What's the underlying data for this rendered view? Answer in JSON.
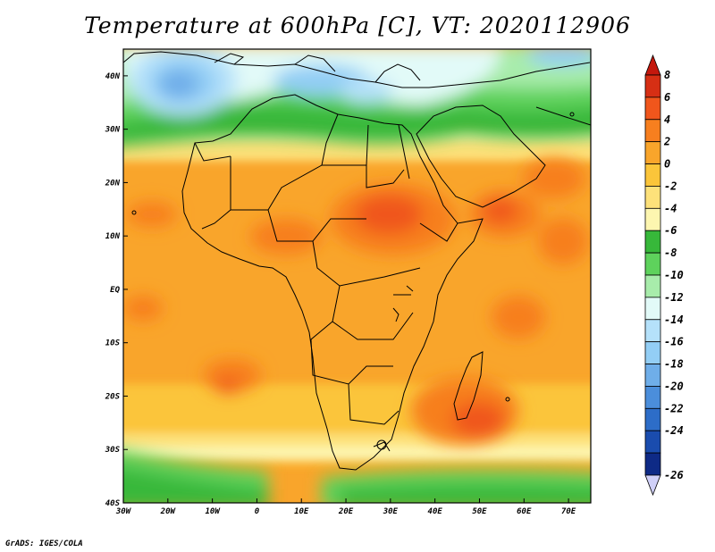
{
  "title": "Temperature at 600hPa [C], VT: 2020112906",
  "credit": "GrADS: IGES/COLA",
  "map": {
    "lon_range": [
      -30,
      75
    ],
    "lat_range": [
      -40,
      45
    ],
    "lat_ticks": [
      {
        "value": 40,
        "label": "40N"
      },
      {
        "value": 30,
        "label": "30N"
      },
      {
        "value": 20,
        "label": "20N"
      },
      {
        "value": 10,
        "label": "10N"
      },
      {
        "value": 0,
        "label": "EQ"
      },
      {
        "value": -10,
        "label": "10S"
      },
      {
        "value": -20,
        "label": "20S"
      },
      {
        "value": -30,
        "label": "30S"
      },
      {
        "value": -40,
        "label": "40S"
      }
    ],
    "lon_ticks": [
      {
        "value": -30,
        "label": "30W"
      },
      {
        "value": -20,
        "label": "20W"
      },
      {
        "value": -10,
        "label": "10W"
      },
      {
        "value": 0,
        "label": "0"
      },
      {
        "value": 10,
        "label": "10E"
      },
      {
        "value": 20,
        "label": "20E"
      },
      {
        "value": 30,
        "label": "30E"
      },
      {
        "value": 40,
        "label": "40E"
      },
      {
        "value": 50,
        "label": "50E"
      },
      {
        "value": 60,
        "label": "60E"
      },
      {
        "value": 70,
        "label": "70E"
      }
    ]
  },
  "colorbar": {
    "levels": [
      {
        "label": "8",
        "color": "#d62f14"
      },
      {
        "label": "6",
        "color": "#f0561c"
      },
      {
        "label": "4",
        "color": "#f77f1f"
      },
      {
        "label": "2",
        "color": "#f9a52b"
      },
      {
        "label": "0",
        "color": "#fbc53a"
      },
      {
        "label": "-2",
        "color": "#fde17a"
      },
      {
        "label": "-4",
        "color": "#fdf6b0"
      },
      {
        "label": "-6",
        "color": "#37b83a"
      },
      {
        "label": "-8",
        "color": "#5ed25c"
      },
      {
        "label": "-10",
        "color": "#a8ecab"
      },
      {
        "label": "-12",
        "color": "#e2faf8"
      },
      {
        "label": "-14",
        "color": "#b5e1fa"
      },
      {
        "label": "-16",
        "color": "#93cef5"
      },
      {
        "label": "-18",
        "color": "#6faee9"
      },
      {
        "label": "-20",
        "color": "#4b8edb"
      },
      {
        "label": "-22",
        "color": "#2d6dc8"
      },
      {
        "label": "-24",
        "color": "#1a4cae"
      },
      {
        "label": "-26",
        "color": "#0e2a86"
      }
    ],
    "top_arrow_color": "#c4180d",
    "bottom_arrow_color": "#d0d0f8"
  }
}
